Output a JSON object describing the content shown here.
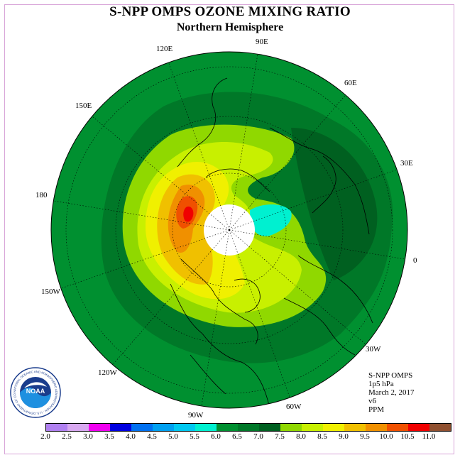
{
  "title": "S-NPP OMPS OZONE MIXING RATIO",
  "subtitle": "Northern Hemisphere",
  "longitude_labels": [
    "90E",
    "60E",
    "30E",
    "0",
    "30W",
    "60W",
    "90W",
    "120W",
    "150W",
    "180",
    "150E",
    "120E"
  ],
  "info": {
    "instrument": "S-NPP OMPS",
    "level": "1p5 hPa",
    "date": "March 2, 2017",
    "version": "v6",
    "units": "PPM"
  },
  "color_scale": {
    "ticks": [
      "2.0",
      "2.5",
      "3.0",
      "3.5",
      "4.0",
      "4.5",
      "5.0",
      "5.5",
      "6.0",
      "6.5",
      "7.0",
      "7.5",
      "8.0",
      "8.5",
      "9.0",
      "9.5",
      "10.0",
      "10.5",
      "11.0"
    ],
    "colors": [
      "#b080f0",
      "#d8a8f0",
      "#f000f0",
      "#0000e0",
      "#0070f0",
      "#00a0f0",
      "#00c8f0",
      "#00f0d0",
      "#009030",
      "#007828",
      "#006020",
      "#90d800",
      "#c8f000",
      "#f0f000",
      "#f0c000",
      "#f09000",
      "#f05000",
      "#f00000",
      "#905030"
    ]
  },
  "logo": {
    "text": "NOAA",
    "ring_text": "NATIONAL OCEANIC AND ATMOSPHERIC ADMINISTRATION · U.S. DEPARTMENT OF COMMERCE"
  }
}
